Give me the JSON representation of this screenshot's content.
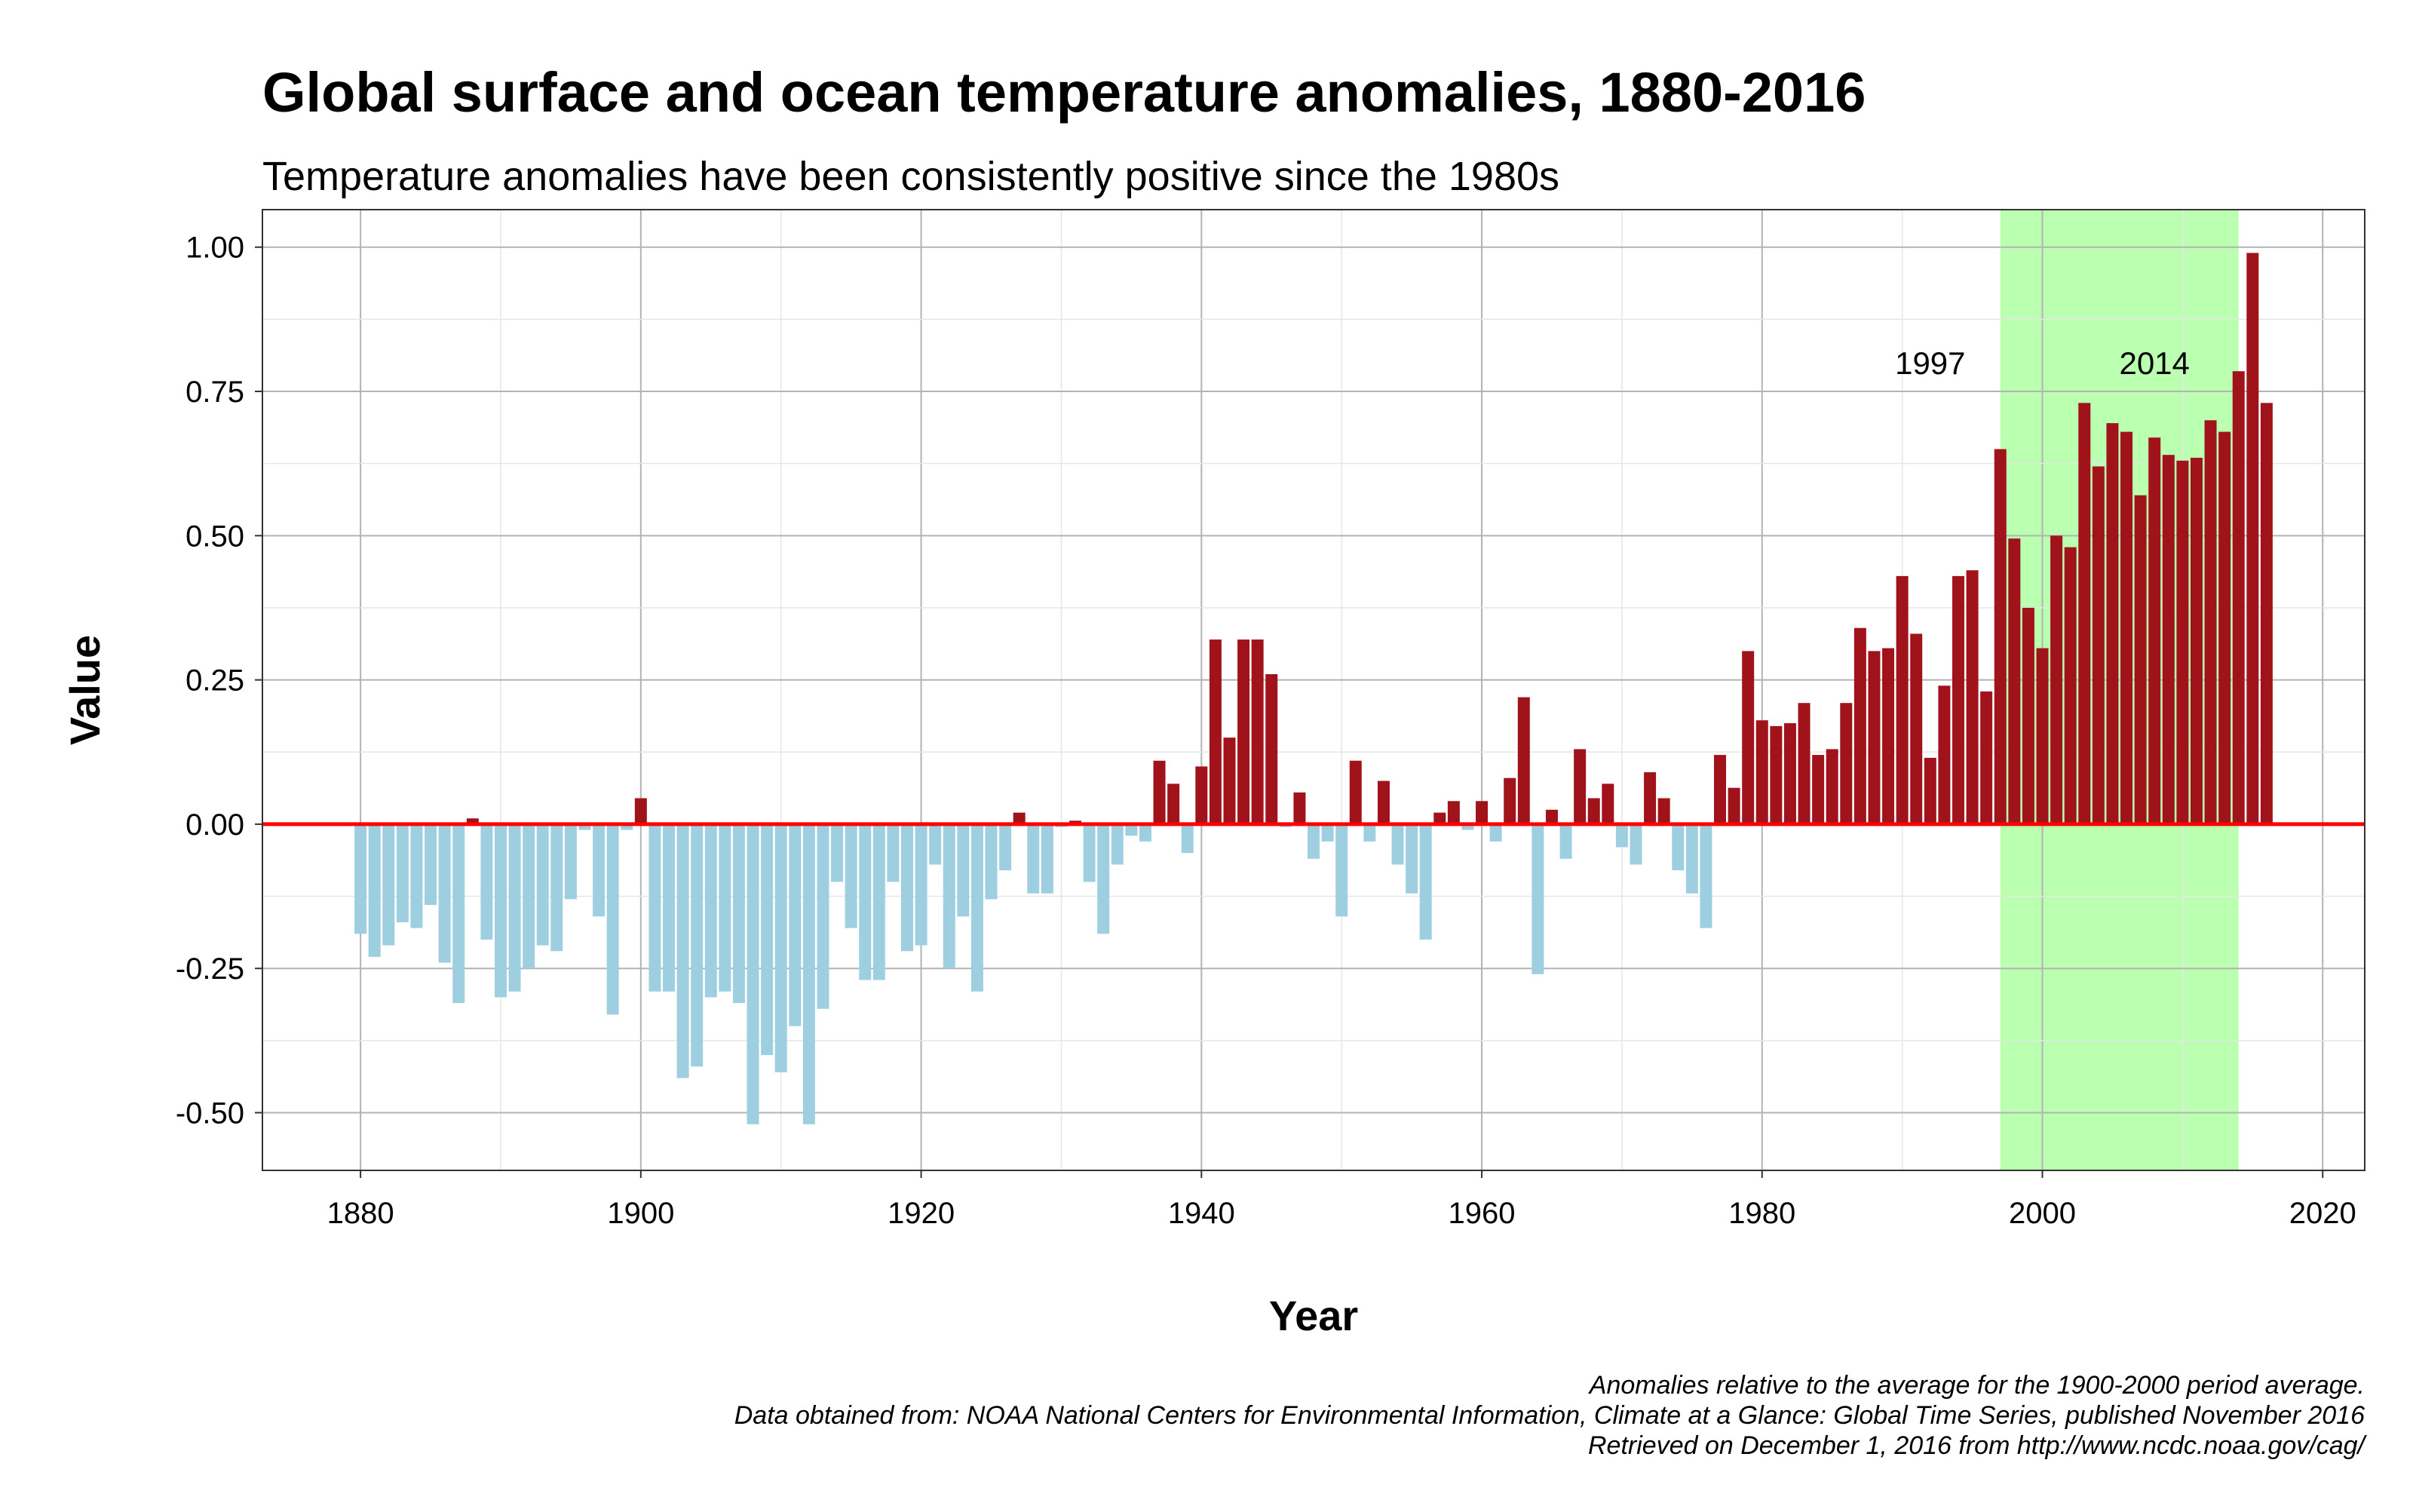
{
  "chart_data": {
    "type": "bar",
    "title": "Global surface and ocean temperature anomalies, 1880-2016",
    "subtitle": "Temperature anomalies have been consistently positive since the 1980s",
    "xlabel": "Year",
    "ylabel": "Value",
    "xlim": [
      1873,
      2023
    ],
    "ylim": [
      -0.6,
      1.065
    ],
    "x_ticks": [
      1880,
      1900,
      1920,
      1940,
      1960,
      1980,
      2000,
      2020
    ],
    "x_tick_labels": [
      "1880",
      "1900",
      "1920",
      "1940",
      "1960",
      "1980",
      "2000",
      "2020"
    ],
    "y_ticks": [
      -0.5,
      -0.25,
      0,
      0.25,
      0.5,
      0.75,
      1.0
    ],
    "y_tick_labels": [
      "-0.50",
      "-0.25",
      "0.00",
      "0.25",
      "0.50",
      "0.75",
      "1.00"
    ],
    "grid": true,
    "legend": "none",
    "baseline": 0,
    "colors": {
      "positive": "#a0131a",
      "negative": "#9ecfe0",
      "baseline": "#ff0000",
      "highlight": "#bbffb0",
      "grid_major": "#b3b3b3",
      "grid_minor": "#e6e6e6",
      "panel_border": "#333333"
    },
    "highlight_range": [
      1997,
      2014
    ],
    "annotations": [
      {
        "text": "1997",
        "x": 1992,
        "y": 0.78
      },
      {
        "text": "2014",
        "x": 2008,
        "y": 0.78
      }
    ],
    "years": [
      1880,
      1881,
      1882,
      1883,
      1884,
      1885,
      1886,
      1887,
      1888,
      1889,
      1890,
      1891,
      1892,
      1893,
      1894,
      1895,
      1896,
      1897,
      1898,
      1899,
      1900,
      1901,
      1902,
      1903,
      1904,
      1905,
      1906,
      1907,
      1908,
      1909,
      1910,
      1911,
      1912,
      1913,
      1914,
      1915,
      1916,
      1917,
      1918,
      1919,
      1920,
      1921,
      1922,
      1923,
      1924,
      1925,
      1926,
      1927,
      1928,
      1929,
      1930,
      1931,
      1932,
      1933,
      1934,
      1935,
      1936,
      1937,
      1938,
      1939,
      1940,
      1941,
      1942,
      1943,
      1944,
      1945,
      1946,
      1947,
      1948,
      1949,
      1950,
      1951,
      1952,
      1953,
      1954,
      1955,
      1956,
      1957,
      1958,
      1959,
      1960,
      1961,
      1962,
      1963,
      1964,
      1965,
      1966,
      1967,
      1968,
      1969,
      1970,
      1971,
      1972,
      1973,
      1974,
      1975,
      1976,
      1977,
      1978,
      1979,
      1980,
      1981,
      1982,
      1983,
      1984,
      1985,
      1986,
      1987,
      1988,
      1989,
      1990,
      1991,
      1992,
      1993,
      1994,
      1995,
      1996,
      1997,
      1998,
      1999,
      2000,
      2001,
      2002,
      2003,
      2004,
      2005,
      2006,
      2007,
      2008,
      2009,
      2010,
      2011,
      2012,
      2013,
      2014,
      2015,
      2016
    ],
    "values": [
      -0.19,
      -0.23,
      -0.21,
      -0.17,
      -0.18,
      -0.14,
      -0.24,
      -0.31,
      0.01,
      -0.2,
      -0.3,
      -0.29,
      -0.25,
      -0.21,
      -0.22,
      -0.13,
      -0.01,
      -0.16,
      -0.33,
      -0.01,
      0.045,
      -0.29,
      -0.29,
      -0.44,
      -0.42,
      -0.3,
      -0.29,
      -0.31,
      -0.52,
      -0.4,
      -0.43,
      -0.35,
      -0.52,
      -0.32,
      -0.1,
      -0.18,
      -0.27,
      -0.27,
      -0.1,
      -0.22,
      -0.21,
      -0.07,
      -0.25,
      -0.16,
      -0.29,
      -0.13,
      -0.08,
      0.02,
      -0.12,
      -0.12,
      -0.005,
      0.006,
      -0.1,
      -0.19,
      -0.07,
      -0.02,
      -0.03,
      0.11,
      0.07,
      -0.05,
      0.1,
      0.32,
      0.15,
      0.32,
      0.32,
      0.26,
      -0.005,
      0.055,
      -0.06,
      -0.03,
      -0.16,
      0.11,
      -0.03,
      0.075,
      -0.07,
      -0.12,
      -0.2,
      0.02,
      0.04,
      -0.01,
      0.04,
      -0.03,
      0.08,
      0.22,
      -0.26,
      0.025,
      -0.06,
      0.13,
      0.045,
      0.07,
      -0.04,
      -0.07,
      0.09,
      0.045,
      -0.08,
      -0.12,
      -0.18,
      0.12,
      0.063,
      0.3,
      0.18,
      0.17,
      0.175,
      0.21,
      0.12,
      0.13,
      0.21,
      0.34,
      0.3,
      0.305,
      0.43,
      0.33,
      0.115,
      0.24,
      0.43,
      0.44,
      0.23,
      0.65,
      0.495,
      0.375,
      0.305,
      0.5,
      0.48,
      0.73,
      0.62,
      0.695,
      0.68,
      0.57,
      0.67,
      0.64,
      0.63,
      0.635,
      0.7,
      0.68,
      0.785,
      0.99,
      0.73
    ]
  },
  "caption": {
    "line1": "Anomalies relative to the average for the 1900-2000 period average.",
    "line2": "Data obtained from: NOAA National Centers for Environmental Information, Climate at a Glance: Global Time Series, published November 2016",
    "line3": "Retrieved on December 1, 2016 from http://www.ncdc.noaa.gov/cag/"
  }
}
